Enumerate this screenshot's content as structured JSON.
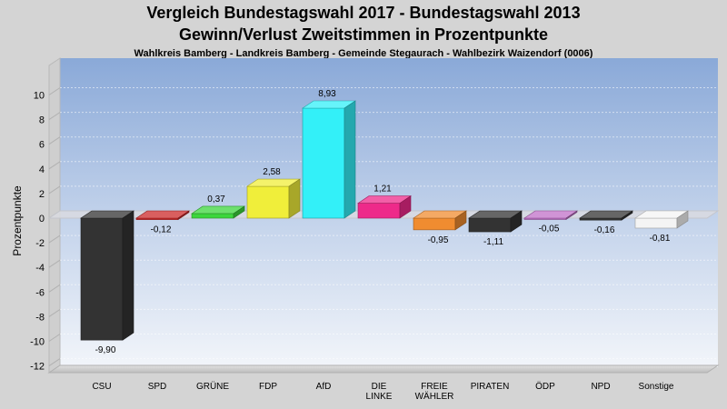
{
  "header": {
    "title": "Vergleich Bundestagswahl 2017 - Bundestagswahl 2013",
    "subtitle": "Gewinn/Verlust Zweitstimmen in Prozentpunkte",
    "detail": "Wahlkreis Bamberg - Landkreis Bamberg - Gemeinde Stegaurach - Wahlbezirk Waizendorf (0006)"
  },
  "chart_data": {
    "type": "bar",
    "title": "Vergleich Bundestagswahl 2017 - Bundestagswahl 2013",
    "subtitle": "Gewinn/Verlust Zweitstimmen in Prozentpunkte",
    "ylabel": "Prozentpunkte",
    "xlabel": "",
    "ylim": [
      -12,
      10
    ],
    "yticks": [
      10,
      8,
      6,
      4,
      2,
      0,
      -2,
      -4,
      -6,
      -8,
      -10,
      -12
    ],
    "grid": true,
    "categories": [
      "CSU",
      "SPD",
      "GRÜNE",
      "FDP",
      "AfD",
      "DIE LINKE",
      "FREIE WÄHLER",
      "PIRATEN",
      "ÖDP",
      "NPD",
      "Sonstige"
    ],
    "category_lines": [
      [
        "CSU"
      ],
      [
        "SPD"
      ],
      [
        "GRÜNE"
      ],
      [
        "FDP"
      ],
      [
        "AfD"
      ],
      [
        "DIE",
        "LINKE"
      ],
      [
        "FREIE",
        "WÄHLER"
      ],
      [
        "PIRATEN"
      ],
      [
        "ÖDP"
      ],
      [
        "NPD"
      ],
      [
        "Sonstige"
      ]
    ],
    "values": [
      -9.9,
      -0.12,
      0.37,
      2.58,
      8.93,
      1.21,
      -0.95,
      -1.11,
      -0.05,
      -0.16,
      -0.81
    ],
    "value_labels": [
      "-9,90",
      "-0,12",
      "0,37",
      "2,58",
      "8,93",
      "1,21",
      "-0,95",
      "-1,11",
      "-0,05",
      "-0,16",
      "-0,81"
    ],
    "colors": [
      "#333333",
      "#cc2a2a",
      "#3cd63c",
      "#f0ee3a",
      "#33f0f8",
      "#ee2a8a",
      "#f08c30",
      "#333333",
      "#c070c8",
      "#333333",
      "#f4f4f4"
    ]
  }
}
